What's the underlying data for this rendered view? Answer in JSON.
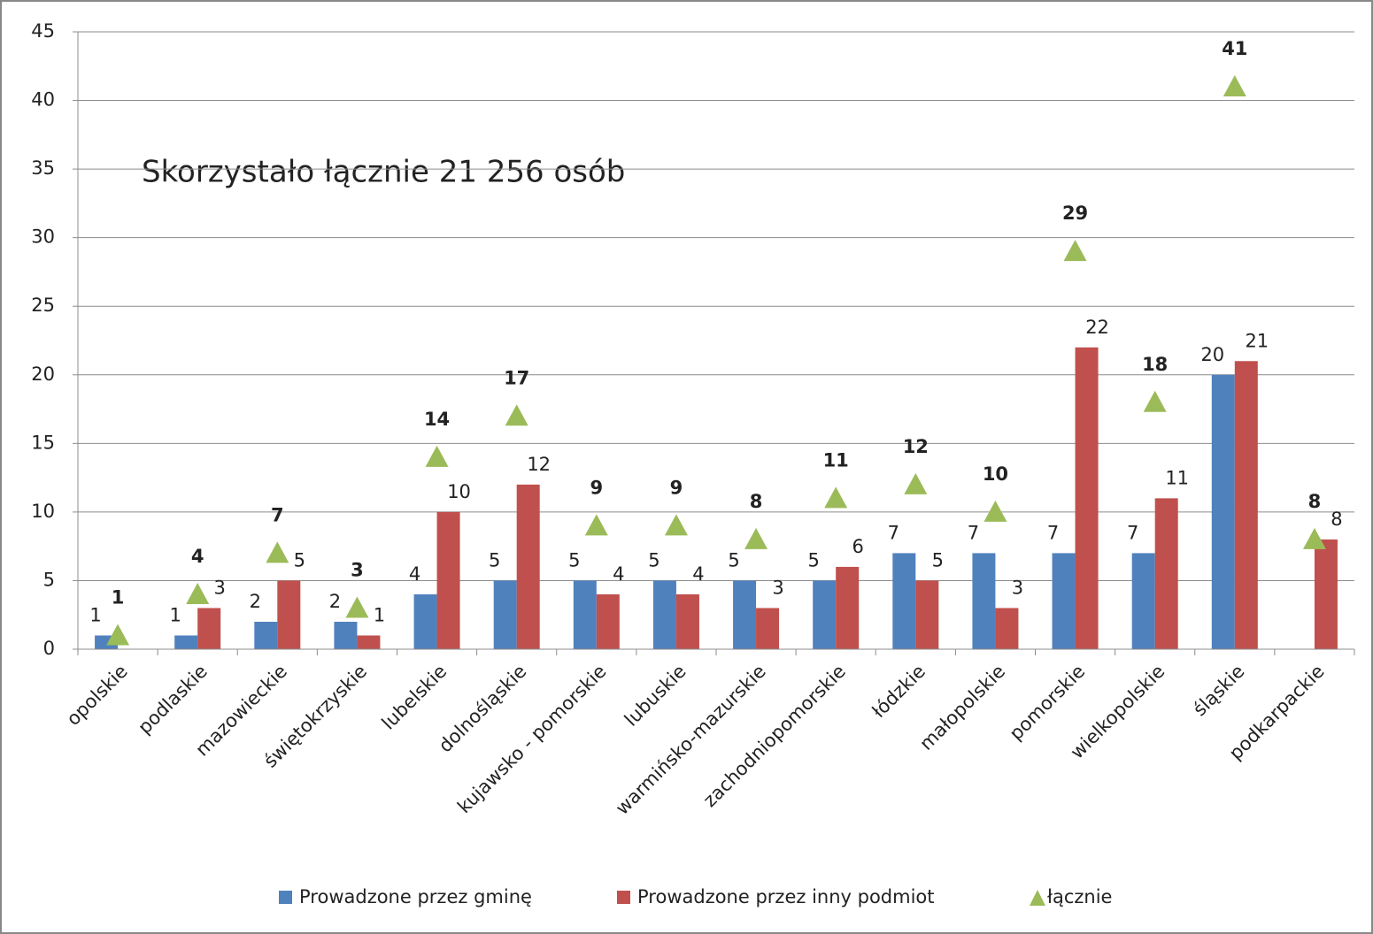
{
  "chart_data": {
    "type": "bar",
    "annotation": "Skorzystało łącznie 21 256 osób",
    "categories": [
      "opolskie",
      "podlaskie",
      "mazowieckie",
      "świętokrzyskie",
      "lubelskie",
      "dolnośląskie",
      "kujawsko - pomorskie",
      "lubuskie",
      "warmińsko-mazurskie",
      "zachodniopomorskie",
      "łódzkie",
      "małopolskie",
      "pomorskie",
      "wielkopolskie",
      "śląskie",
      "podkarpackie"
    ],
    "series": [
      {
        "name": "Prowadzone przez gminę",
        "color": "#4f81bd",
        "kind": "bar",
        "values": [
          1,
          1,
          2,
          2,
          4,
          5,
          5,
          5,
          5,
          5,
          7,
          7,
          7,
          7,
          20,
          null
        ]
      },
      {
        "name": "Prowadzone przez inny podmiot",
        "color": "#c0504d",
        "kind": "bar",
        "values": [
          null,
          3,
          5,
          1,
          10,
          12,
          4,
          4,
          3,
          6,
          5,
          3,
          22,
          11,
          21,
          8
        ]
      },
      {
        "name": "łącznie",
        "color": "#9bbb59",
        "kind": "triangle",
        "values": [
          1,
          4,
          7,
          3,
          14,
          17,
          9,
          9,
          8,
          11,
          12,
          10,
          29,
          18,
          41,
          8
        ]
      }
    ],
    "ylim": [
      0,
      45
    ],
    "yticks": [
      0,
      5,
      10,
      15,
      20,
      25,
      30,
      35,
      40,
      45
    ],
    "grid": true,
    "legend": "bottom"
  }
}
